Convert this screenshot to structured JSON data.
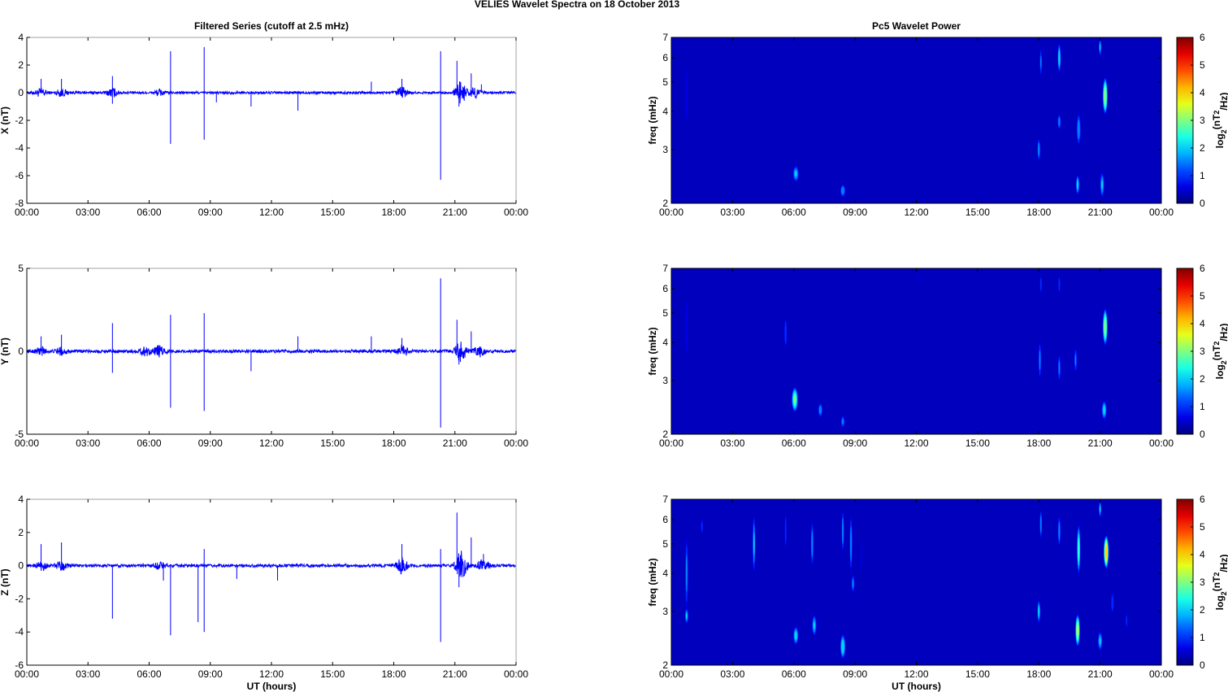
{
  "figure_title": "VELIES Wavelet Spectra on 18 October   2013",
  "colors": {
    "trace": "#0000ff",
    "spectrum_bg": "#00008f",
    "axis": "#000000"
  },
  "chart_data": [
    {
      "id": "ts_x",
      "type": "line",
      "title": "Filtered Series (cutoff at 2.5 mHz)",
      "xlabel": "",
      "ylabel": "X (nT)",
      "xlim": [
        0,
        24
      ],
      "ylim": [
        -8,
        4
      ],
      "xticks": [
        "00:00",
        "03:00",
        "06:00",
        "09:00",
        "12:00",
        "15:00",
        "18:00",
        "21:00",
        "00:00"
      ],
      "yticks": [
        -8,
        -6,
        -4,
        -2,
        0,
        2,
        4
      ],
      "series": [
        {
          "baseline": 0,
          "noise_bursts": [
            [
              0.7,
              0.3
            ],
            [
              1.7,
              0.25
            ],
            [
              4.2,
              0.3
            ],
            [
              6.5,
              0.2
            ],
            [
              18.4,
              0.4
            ],
            [
              21.3,
              0.8
            ],
            [
              22.0,
              0.35
            ]
          ],
          "spikes": [
            [
              0.7,
              1.0
            ],
            [
              1.7,
              1.0
            ],
            [
              4.2,
              1.2
            ],
            [
              4.2,
              -0.8
            ],
            [
              7.05,
              3.0
            ],
            [
              7.05,
              -3.7
            ],
            [
              8.7,
              3.3
            ],
            [
              8.7,
              -3.4
            ],
            [
              9.3,
              -0.7
            ],
            [
              11.0,
              -1.0
            ],
            [
              13.3,
              -1.3
            ],
            [
              16.9,
              0.8
            ],
            [
              18.4,
              1.0
            ],
            [
              20.3,
              3.0
            ],
            [
              20.3,
              -6.3
            ],
            [
              21.1,
              2.3
            ],
            [
              21.2,
              -1.0
            ],
            [
              21.8,
              1.4
            ],
            [
              22.3,
              0.6
            ]
          ]
        }
      ]
    },
    {
      "id": "ts_y",
      "type": "line",
      "title": "",
      "xlabel": "",
      "ylabel": "Y (nT)",
      "xlim": [
        0,
        24
      ],
      "ylim": [
        -5,
        5
      ],
      "xticks": [
        "00:00",
        "03:00",
        "06:00",
        "09:00",
        "12:00",
        "15:00",
        "18:00",
        "21:00",
        "00:00"
      ],
      "yticks": [
        -5,
        0,
        5
      ],
      "series": [
        {
          "baseline": 0,
          "noise_bursts": [
            [
              0.7,
              0.25
            ],
            [
              1.7,
              0.2
            ],
            [
              5.8,
              0.25
            ],
            [
              6.5,
              0.3
            ],
            [
              18.4,
              0.35
            ],
            [
              21.3,
              0.7
            ],
            [
              22.2,
              0.3
            ]
          ],
          "spikes": [
            [
              0.7,
              0.9
            ],
            [
              1.7,
              1.0
            ],
            [
              4.2,
              1.7
            ],
            [
              4.2,
              -1.3
            ],
            [
              7.05,
              2.2
            ],
            [
              7.05,
              -3.4
            ],
            [
              8.7,
              2.3
            ],
            [
              8.7,
              -3.6
            ],
            [
              11.0,
              -1.2
            ],
            [
              13.3,
              0.9
            ],
            [
              16.9,
              0.9
            ],
            [
              18.4,
              0.8
            ],
            [
              20.3,
              4.4
            ],
            [
              20.3,
              -4.6
            ],
            [
              21.1,
              1.9
            ],
            [
              21.2,
              -0.8
            ],
            [
              21.8,
              1.2
            ]
          ]
        }
      ]
    },
    {
      "id": "ts_z",
      "type": "line",
      "title": "",
      "xlabel": "UT (hours)",
      "ylabel": "Z (nT)",
      "xlim": [
        0,
        24
      ],
      "ylim": [
        -6,
        4
      ],
      "xticks": [
        "00:00",
        "03:00",
        "06:00",
        "09:00",
        "12:00",
        "15:00",
        "18:00",
        "21:00",
        "00:00"
      ],
      "yticks": [
        -6,
        -4,
        -2,
        0,
        2,
        4
      ],
      "series": [
        {
          "baseline": 0,
          "noise_bursts": [
            [
              0.7,
              0.25
            ],
            [
              1.7,
              0.25
            ],
            [
              6.5,
              0.2
            ],
            [
              18.4,
              0.45
            ],
            [
              21.3,
              0.9
            ],
            [
              22.4,
              0.35
            ]
          ],
          "spikes": [
            [
              0.7,
              1.3
            ],
            [
              1.7,
              1.4
            ],
            [
              4.2,
              -3.2
            ],
            [
              6.7,
              -0.9
            ],
            [
              7.05,
              -4.2
            ],
            [
              8.4,
              -3.4
            ],
            [
              8.7,
              -4.0
            ],
            [
              8.7,
              1.0
            ],
            [
              10.3,
              -0.8
            ],
            [
              12.3,
              -0.9
            ],
            [
              18.4,
              1.3
            ],
            [
              20.3,
              -4.6
            ],
            [
              20.3,
              1.0
            ],
            [
              21.1,
              3.2
            ],
            [
              21.2,
              -1.3
            ],
            [
              21.8,
              1.7
            ],
            [
              22.4,
              0.7
            ]
          ]
        }
      ]
    },
    {
      "id": "sp_x",
      "type": "heatmap",
      "title": "Pc5 Wavelet Power",
      "xlabel": "",
      "ylabel": "freq (mHz)",
      "xlim": [
        0,
        24
      ],
      "ylim": [
        2,
        7
      ],
      "yscale": "log",
      "xticks": [
        "00:00",
        "03:00",
        "06:00",
        "09:00",
        "12:00",
        "15:00",
        "18:00",
        "21:00",
        "00:00"
      ],
      "yticks": [
        2,
        3,
        4,
        5,
        6,
        7
      ],
      "colorbar": {
        "label": "log2(nT2/Hz)",
        "label_base": "log",
        "label_sub": "2",
        "label_open": "(nT",
        "label_sup": "2",
        "label_close": "/Hz)",
        "ticks": [
          0,
          1,
          2,
          3,
          4,
          5,
          6
        ],
        "range": [
          0,
          6
        ],
        "colormap": "jet"
      },
      "blobs": [
        {
          "t": 0.75,
          "f": 4.5,
          "power": 0.9,
          "dt": 0.07,
          "df": 2.5
        },
        {
          "t": 6.1,
          "f": 2.5,
          "power": 2.0,
          "dt": 0.17,
          "df": 0.35
        },
        {
          "t": 8.4,
          "f": 2.2,
          "power": 1.8,
          "dt": 0.15,
          "df": 0.25
        },
        {
          "t": 18.0,
          "f": 3.0,
          "power": 1.8,
          "dt": 0.09,
          "df": 0.6
        },
        {
          "t": 18.1,
          "f": 5.8,
          "power": 1.5,
          "dt": 0.07,
          "df": 1.5
        },
        {
          "t": 19.0,
          "f": 6.0,
          "power": 2.4,
          "dt": 0.09,
          "df": 1.5
        },
        {
          "t": 19.0,
          "f": 3.7,
          "power": 1.8,
          "dt": 0.09,
          "df": 0.5
        },
        {
          "t": 19.9,
          "f": 2.3,
          "power": 2.2,
          "dt": 0.1,
          "df": 0.4
        },
        {
          "t": 19.95,
          "f": 3.5,
          "power": 1.8,
          "dt": 0.12,
          "df": 1.0
        },
        {
          "t": 21.1,
          "f": 2.3,
          "power": 2.0,
          "dt": 0.12,
          "df": 0.5
        },
        {
          "t": 21.25,
          "f": 4.5,
          "power": 3.4,
          "dt": 0.14,
          "df": 1.4
        },
        {
          "t": 21.0,
          "f": 6.5,
          "power": 2.0,
          "dt": 0.07,
          "df": 1.0
        }
      ]
    },
    {
      "id": "sp_y",
      "type": "heatmap",
      "title": "",
      "xlabel": "",
      "ylabel": "freq (mHz)",
      "xlim": [
        0,
        24
      ],
      "ylim": [
        2,
        7
      ],
      "yscale": "log",
      "xticks": [
        "00:00",
        "03:00",
        "06:00",
        "09:00",
        "12:00",
        "15:00",
        "18:00",
        "21:00",
        "00:00"
      ],
      "yticks": [
        2,
        3,
        4,
        5,
        6,
        7
      ],
      "colorbar": {
        "label": "log2(nT2/Hz)",
        "label_base": "log",
        "label_sub": "2",
        "label_open": "(nT",
        "label_sup": "2",
        "label_close": "/Hz)",
        "ticks": [
          0,
          1,
          2,
          3,
          4,
          5,
          6
        ],
        "range": [
          0,
          6
        ],
        "colormap": "jet"
      },
      "blobs": [
        {
          "t": 0.75,
          "f": 4.5,
          "power": 0.9,
          "dt": 0.07,
          "df": 2.5
        },
        {
          "t": 6.05,
          "f": 2.6,
          "power": 3.0,
          "dt": 0.18,
          "df": 0.55
        },
        {
          "t": 5.6,
          "f": 4.3,
          "power": 1.4,
          "dt": 0.08,
          "df": 1.2
        },
        {
          "t": 7.3,
          "f": 2.4,
          "power": 1.8,
          "dt": 0.13,
          "df": 0.3
        },
        {
          "t": 8.4,
          "f": 2.2,
          "power": 1.5,
          "dt": 0.13,
          "df": 0.25
        },
        {
          "t": 12.1,
          "f": 6.5,
          "power": 0.9,
          "dt": 0.05,
          "df": 0.6
        },
        {
          "t": 18.05,
          "f": 3.5,
          "power": 1.6,
          "dt": 0.08,
          "df": 1.2
        },
        {
          "t": 18.1,
          "f": 6.2,
          "power": 1.4,
          "dt": 0.06,
          "df": 1.0
        },
        {
          "t": 19.0,
          "f": 3.3,
          "power": 1.6,
          "dt": 0.08,
          "df": 0.8
        },
        {
          "t": 19.0,
          "f": 6.2,
          "power": 1.4,
          "dt": 0.06,
          "df": 1.0
        },
        {
          "t": 19.8,
          "f": 3.5,
          "power": 1.5,
          "dt": 0.09,
          "df": 0.8
        },
        {
          "t": 21.2,
          "f": 2.4,
          "power": 2.2,
          "dt": 0.14,
          "df": 0.4
        },
        {
          "t": 21.25,
          "f": 4.5,
          "power": 3.3,
          "dt": 0.14,
          "df": 1.4
        }
      ]
    },
    {
      "id": "sp_z",
      "type": "heatmap",
      "title": "",
      "xlabel": "UT (hours)",
      "ylabel": "freq (mHz)",
      "xlim": [
        0,
        24
      ],
      "ylim": [
        2,
        7
      ],
      "yscale": "log",
      "xticks": [
        "00:00",
        "03:00",
        "06:00",
        "09:00",
        "12:00",
        "15:00",
        "18:00",
        "21:00",
        "00:00"
      ],
      "yticks": [
        2,
        3,
        4,
        5,
        6,
        7
      ],
      "colorbar": {
        "label": "log2(nT2/Hz)",
        "label_base": "log",
        "label_sub": "2",
        "label_open": "(nT",
        "label_sup": "2",
        "label_close": "/Hz)",
        "ticks": [
          0,
          1,
          2,
          3,
          4,
          5,
          6
        ],
        "range": [
          0,
          6
        ],
        "colormap": "jet"
      },
      "blobs": [
        {
          "t": 0.75,
          "f": 4.0,
          "power": 1.6,
          "dt": 0.09,
          "df": 2.5
        },
        {
          "t": 0.75,
          "f": 2.9,
          "power": 2.0,
          "dt": 0.1,
          "df": 0.4
        },
        {
          "t": 1.5,
          "f": 5.7,
          "power": 1.2,
          "dt": 0.07,
          "df": 0.8
        },
        {
          "t": 4.05,
          "f": 5.0,
          "power": 2.0,
          "dt": 0.08,
          "df": 2.5
        },
        {
          "t": 5.6,
          "f": 5.5,
          "power": 1.2,
          "dt": 0.06,
          "df": 2.0
        },
        {
          "t": 6.1,
          "f": 2.5,
          "power": 2.2,
          "dt": 0.15,
          "df": 0.4
        },
        {
          "t": 7.0,
          "f": 2.7,
          "power": 2.0,
          "dt": 0.13,
          "df": 0.5
        },
        {
          "t": 6.9,
          "f": 5.0,
          "power": 1.8,
          "dt": 0.08,
          "df": 2.0
        },
        {
          "t": 8.4,
          "f": 2.3,
          "power": 2.4,
          "dt": 0.15,
          "df": 0.5
        },
        {
          "t": 8.4,
          "f": 5.5,
          "power": 1.9,
          "dt": 0.07,
          "df": 2.0
        },
        {
          "t": 8.8,
          "f": 5.0,
          "power": 1.8,
          "dt": 0.08,
          "df": 2.5
        },
        {
          "t": 8.9,
          "f": 3.7,
          "power": 1.6,
          "dt": 0.1,
          "df": 0.6
        },
        {
          "t": 9.3,
          "f": 4.5,
          "power": 0.9,
          "dt": 0.05,
          "df": 1.5
        },
        {
          "t": 18.0,
          "f": 3.0,
          "power": 2.2,
          "dt": 0.09,
          "df": 0.6
        },
        {
          "t": 18.1,
          "f": 5.8,
          "power": 1.8,
          "dt": 0.07,
          "df": 1.5
        },
        {
          "t": 19.0,
          "f": 5.5,
          "power": 1.8,
          "dt": 0.08,
          "df": 1.5
        },
        {
          "t": 19.9,
          "f": 2.6,
          "power": 3.6,
          "dt": 0.13,
          "df": 0.7
        },
        {
          "t": 19.95,
          "f": 4.8,
          "power": 2.8,
          "dt": 0.1,
          "df": 2.0
        },
        {
          "t": 21.0,
          "f": 2.4,
          "power": 2.0,
          "dt": 0.13,
          "df": 0.4
        },
        {
          "t": 21.3,
          "f": 4.7,
          "power": 4.3,
          "dt": 0.14,
          "df": 1.3
        },
        {
          "t": 21.0,
          "f": 6.5,
          "power": 2.0,
          "dt": 0.07,
          "df": 1.0
        },
        {
          "t": 21.6,
          "f": 3.2,
          "power": 1.4,
          "dt": 0.08,
          "df": 0.6
        },
        {
          "t": 22.3,
          "f": 2.8,
          "power": 1.0,
          "dt": 0.06,
          "df": 0.5
        }
      ]
    }
  ]
}
